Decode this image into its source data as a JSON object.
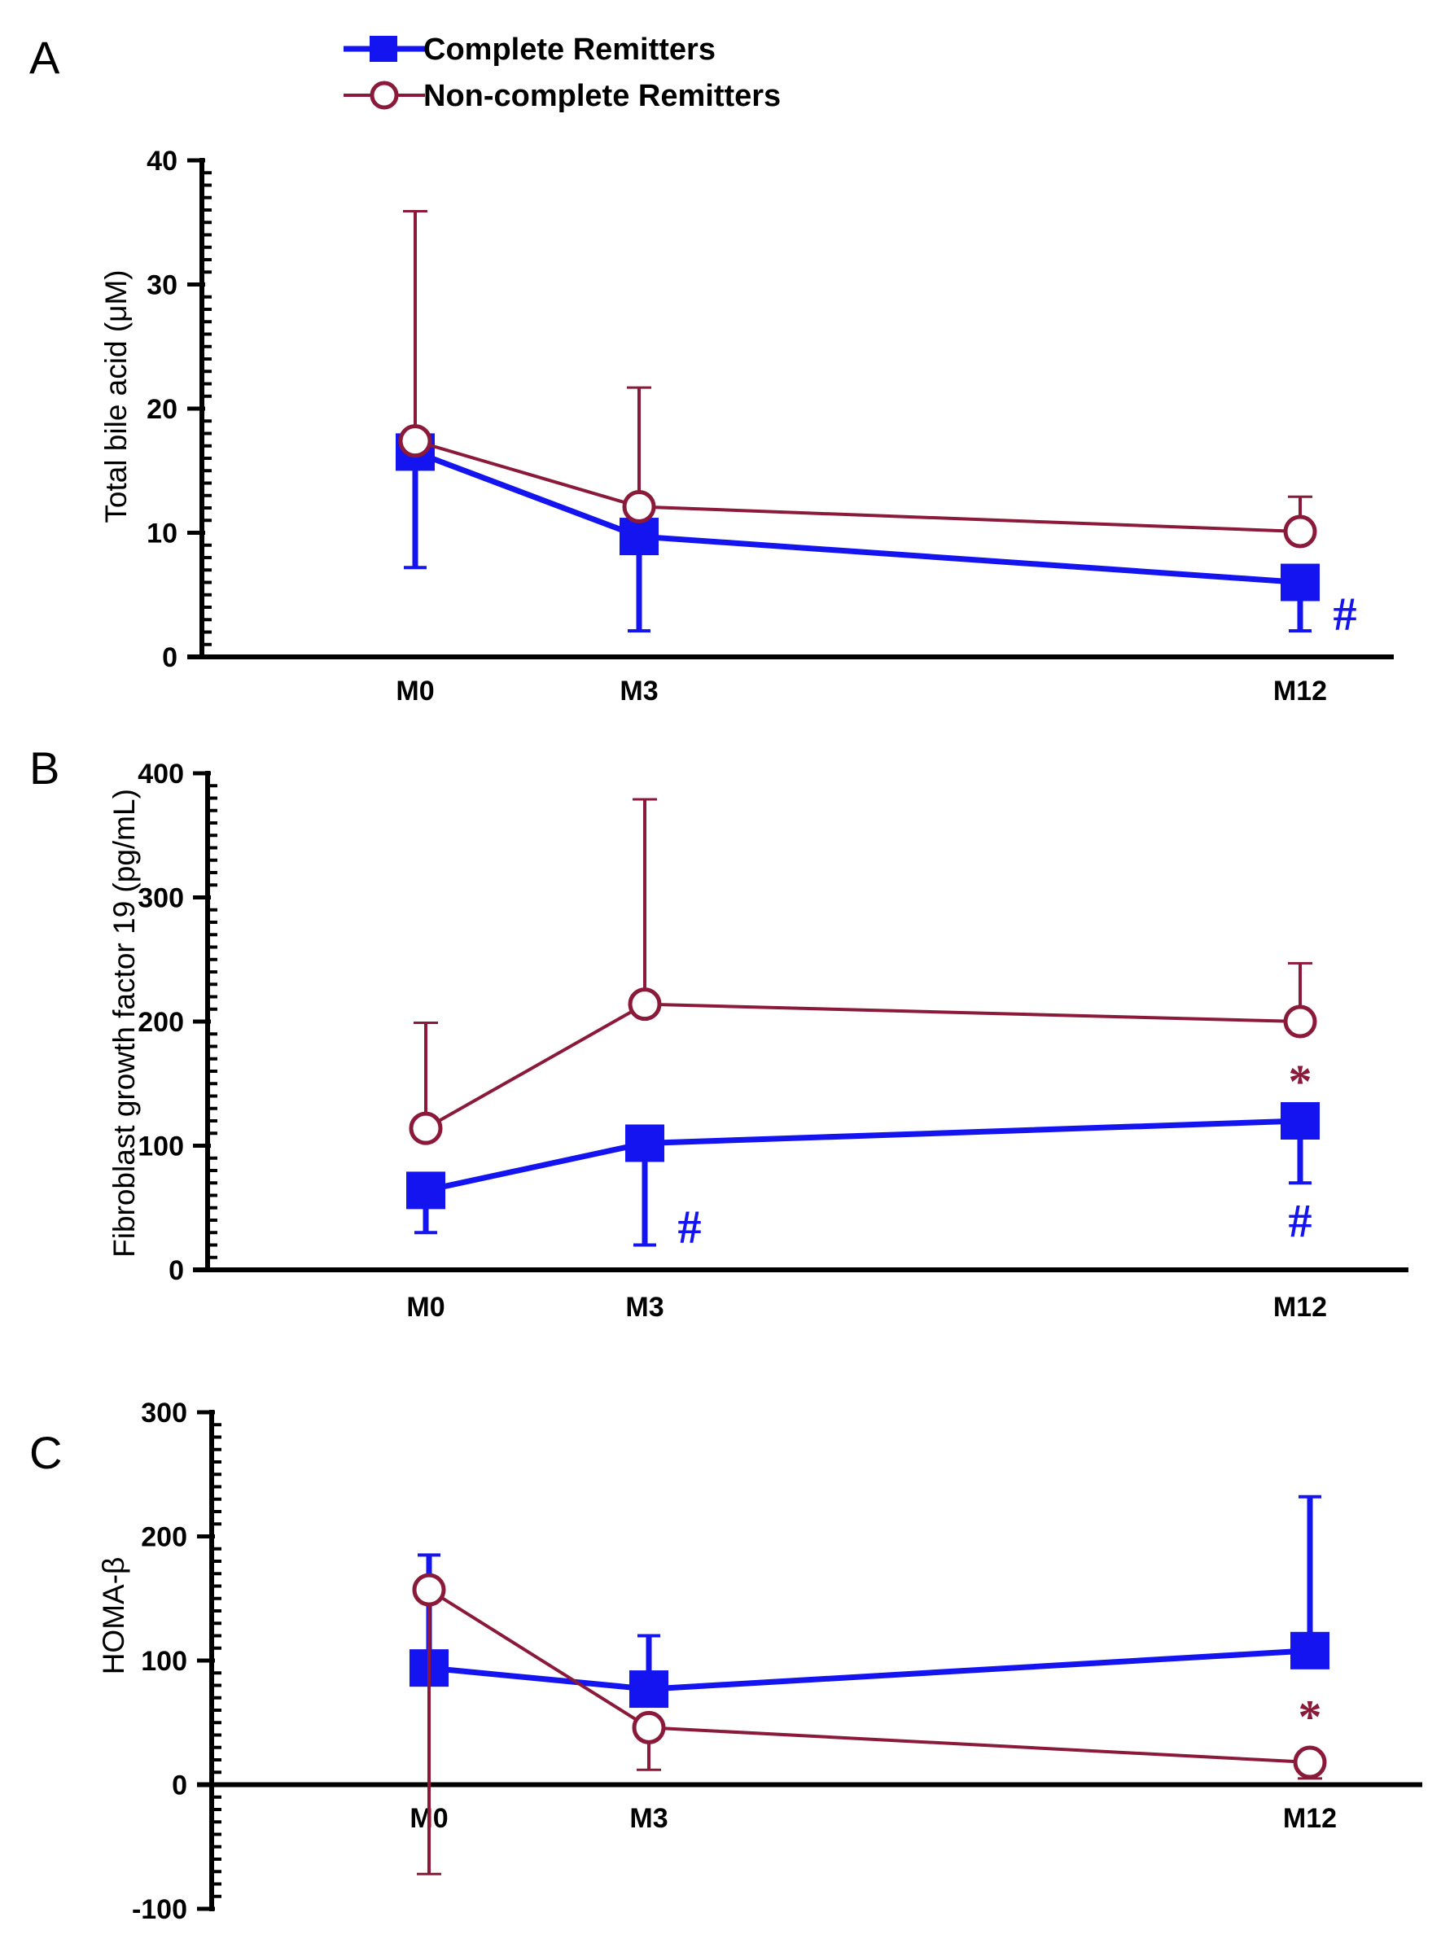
{
  "legend": {
    "complete": "Complete Remitters",
    "noncomplete": "Non-complete Remitters"
  },
  "colors": {
    "complete": "#1414f0",
    "noncomplete": "#8b1a3a"
  },
  "chart_data": [
    {
      "panel": "A",
      "type": "line",
      "title": "",
      "xlabel": "",
      "ylabel": "Total bile acid (μM)",
      "categories": [
        "M0",
        "M3",
        "M12"
      ],
      "x": [
        0,
        3,
        12
      ],
      "ylim": [
        0,
        40
      ],
      "yticks": [
        0,
        10,
        20,
        30,
        40
      ],
      "series": [
        {
          "name": "Complete Remitters",
          "values": [
            16.5,
            9.7,
            6.0
          ],
          "error_low": [
            7.2,
            2.1,
            2.1
          ],
          "error_high": null
        },
        {
          "name": "Non-complete Remitters",
          "values": [
            17.4,
            12.1,
            10.1
          ],
          "error_low": null,
          "error_high": [
            35.9,
            21.7,
            12.9
          ]
        }
      ],
      "annotations": [
        {
          "text": "#",
          "series": "Complete Remitters",
          "x": 12,
          "y": 3.5
        }
      ]
    },
    {
      "panel": "B",
      "type": "line",
      "title": "",
      "xlabel": "",
      "ylabel": "Fibroblast growth factor 19 (pg/mL)",
      "categories": [
        "M0",
        "M3",
        "M12"
      ],
      "x": [
        0,
        3,
        12
      ],
      "ylim": [
        0,
        400
      ],
      "yticks": [
        0,
        100,
        200,
        300,
        400
      ],
      "series": [
        {
          "name": "Complete Remitters",
          "values": [
            64,
            102,
            120
          ],
          "error_low": [
            30,
            20,
            70
          ],
          "error_high": null
        },
        {
          "name": "Non-complete Remitters",
          "values": [
            114,
            214,
            200
          ],
          "error_low": null,
          "error_high": [
            199,
            379,
            247
          ]
        }
      ],
      "annotations": [
        {
          "text": "#",
          "series": "Complete Remitters",
          "x": 3,
          "y": 35
        },
        {
          "text": "#",
          "series": "Complete Remitters",
          "x": 12,
          "y": 40
        },
        {
          "text": "*",
          "series": "Non-complete Remitters",
          "x": 12,
          "y": 152
        }
      ]
    },
    {
      "panel": "C",
      "type": "line",
      "title": "",
      "xlabel": "",
      "ylabel": "HOMA-β",
      "categories": [
        "M0",
        "M3",
        "M12"
      ],
      "x": [
        0,
        3,
        12
      ],
      "ylim": [
        -100,
        300
      ],
      "yticks": [
        -100,
        0,
        100,
        200,
        300
      ],
      "series": [
        {
          "name": "Complete Remitters",
          "values": [
            94,
            77,
            108
          ],
          "error_low": null,
          "error_high": [
            185,
            120,
            232
          ]
        },
        {
          "name": "Non-complete Remitters",
          "values": [
            157,
            46,
            18
          ],
          "error_low": [
            -72,
            12,
            5
          ],
          "error_high": null
        }
      ],
      "annotations": [
        {
          "text": "*",
          "series": "Non-complete Remitters",
          "x": 12,
          "y": 55
        }
      ]
    }
  ]
}
